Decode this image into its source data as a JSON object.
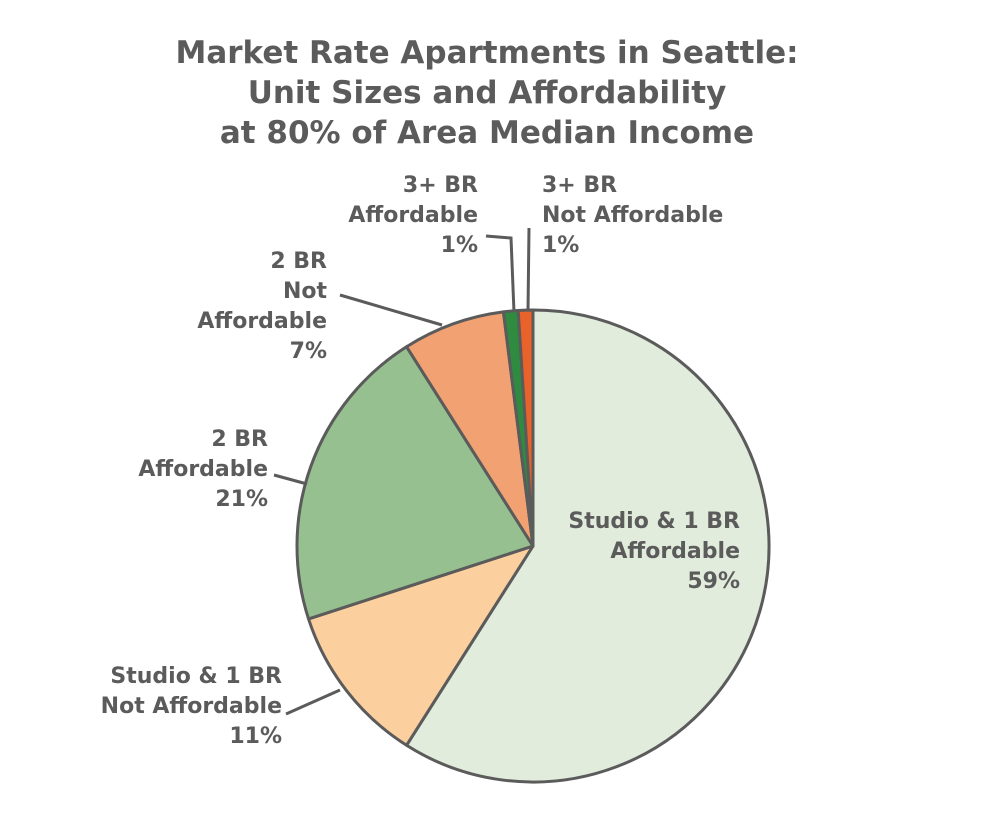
{
  "chart_data": {
    "type": "pie",
    "title_lines": [
      "Market Rate Apartments in Seattle:",
      "Unit Sizes and Affordability",
      "at 80% of Area Median Income"
    ],
    "start_angle_deg": 0,
    "direction": "clockwise",
    "slices": [
      {
        "label_lines": [
          "Studio & 1 BR",
          "Affordable"
        ],
        "value": 59,
        "value_label": "59%",
        "color": "#e1ecdc"
      },
      {
        "label_lines": [
          "Studio & 1 BR",
          "Not Affordable"
        ],
        "value": 11,
        "value_label": "11%",
        "color": "#fcd09e"
      },
      {
        "label_lines": [
          "2 BR",
          "Affordable"
        ],
        "value": 21,
        "value_label": "21%",
        "color": "#96c08f"
      },
      {
        "label_lines": [
          "2 BR",
          "Not",
          "Affordable"
        ],
        "value": 7,
        "value_label": "7%",
        "color": "#f2a272"
      },
      {
        "label_lines": [
          "3+ BR",
          "Affordable"
        ],
        "value": 1,
        "value_label": "1%",
        "color": "#2e8b3f"
      },
      {
        "label_lines": [
          "3+ BR",
          "Not Affordable"
        ],
        "value": 1,
        "value_label": "1%",
        "color": "#e8622a"
      }
    ],
    "legend": "none",
    "colors": {
      "text": "#5b5b5b",
      "outline": "#5b5b5b"
    }
  }
}
